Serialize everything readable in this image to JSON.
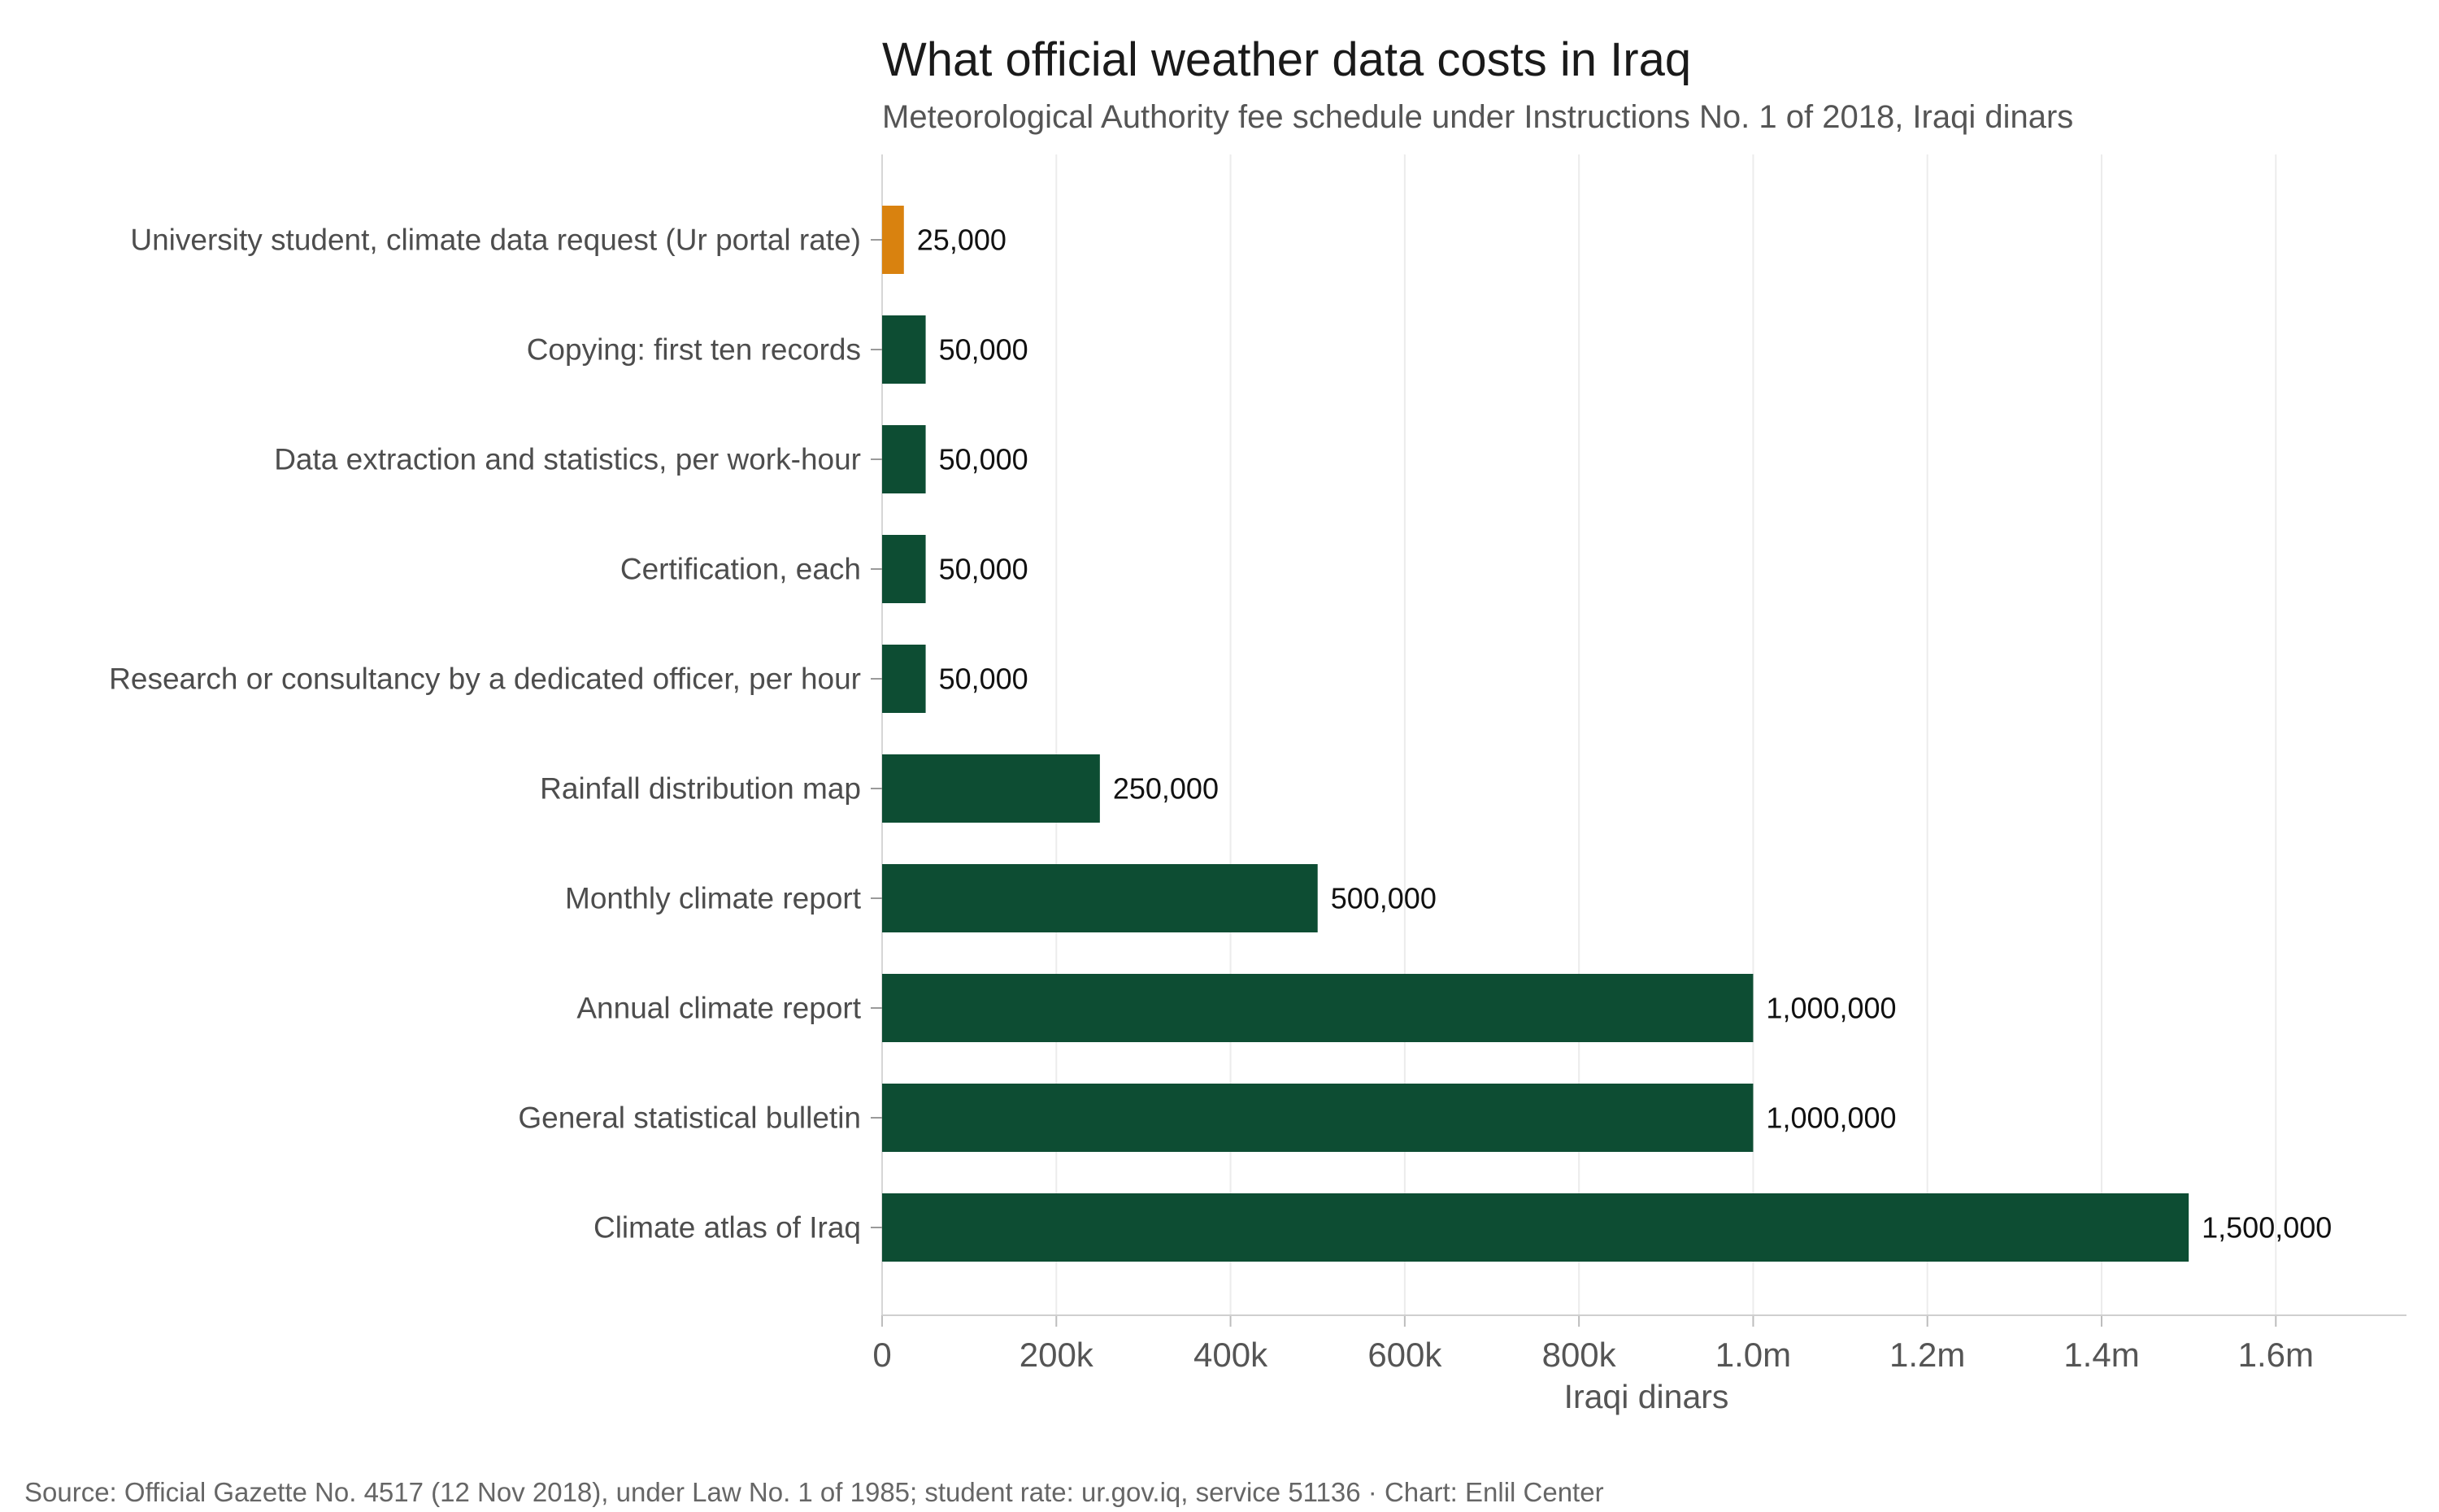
{
  "chart_data": {
    "type": "bar",
    "orientation": "horizontal",
    "title": "What official weather data costs in Iraq",
    "subtitle": "Meteorological Authority fee schedule under Instructions No. 1 of 2018, Iraqi dinars",
    "xlabel": "Iraqi dinars",
    "ylabel": "",
    "xlim": [
      0,
      1750000
    ],
    "grid": "vertical",
    "ticks": [
      {
        "value": 0,
        "label": "0"
      },
      {
        "value": 200000,
        "label": "200k"
      },
      {
        "value": 400000,
        "label": "400k"
      },
      {
        "value": 600000,
        "label": "600k"
      },
      {
        "value": 800000,
        "label": "800k"
      },
      {
        "value": 1000000,
        "label": "1.0m"
      },
      {
        "value": 1200000,
        "label": "1.2m"
      },
      {
        "value": 1400000,
        "label": "1.4m"
      },
      {
        "value": 1600000,
        "label": "1.6m"
      }
    ],
    "categories": [
      "University student, climate data request (Ur portal rate)",
      "Copying: first ten records",
      "Data extraction and statistics, per work-hour",
      "Certification, each",
      "Research or consultancy by a dedicated officer, per hour",
      "Rainfall distribution map",
      "Monthly climate report",
      "Annual climate report",
      "General statistical bulletin",
      "Climate atlas of Iraq"
    ],
    "values": [
      25000,
      50000,
      50000,
      50000,
      50000,
      250000,
      500000,
      1000000,
      1000000,
      1500000
    ],
    "value_labels": [
      "25,000",
      "50,000",
      "50,000",
      "50,000",
      "50,000",
      "250,000",
      "500,000",
      "1,000,000",
      "1,000,000",
      "1,500,000"
    ],
    "colors": {
      "highlight": "#d9820f",
      "default": "#0d4d33"
    },
    "highlight_index": 0
  },
  "source": "Source: Official Gazette No. 4517 (12 Nov 2018), under Law No. 1 of 1985; student rate: ur.gov.iq, service 51136 · Chart: Enlil Center"
}
